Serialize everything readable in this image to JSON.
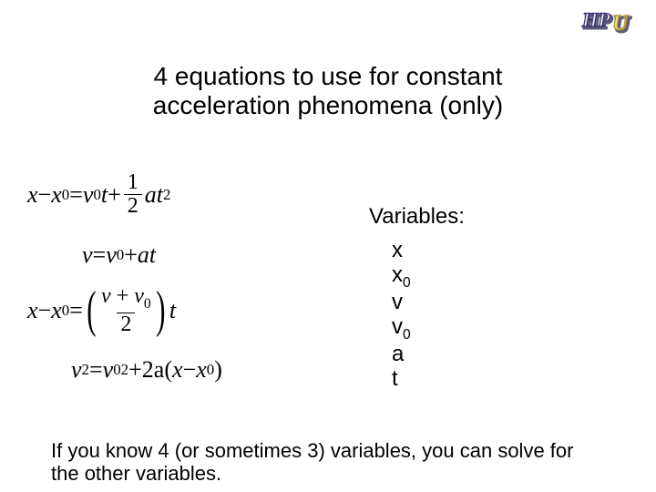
{
  "logo_colors": {
    "shadow": "#5b5b76",
    "hp_fill": "#e4e1f2",
    "hp_stroke": "#3b3570",
    "u_fill": "#f3e07a",
    "u_stroke": "#a8902d"
  },
  "title_line1": "4 equations to use for constant",
  "title_line2": "acceleration phenomena (only)",
  "variables_heading": "Variables:",
  "vars": {
    "v1": "x",
    "v2a": "x",
    "v2b": "0",
    "v3": "v",
    "v4a": "v",
    "v4b": "0",
    "v5": "a",
    "v6": "t"
  },
  "footer": "If you know 4 (or sometimes 3) variables, you can solve for the other variables.",
  "eq": {
    "x": "x",
    "minus": " − ",
    "eq": " = ",
    "plus": " + ",
    "v": "v",
    "a": "a",
    "t": "t",
    "zero": "0",
    "two": "2",
    "one": "1",
    "lparen": "(",
    "rparen": ")",
    "twoa": "2a"
  }
}
